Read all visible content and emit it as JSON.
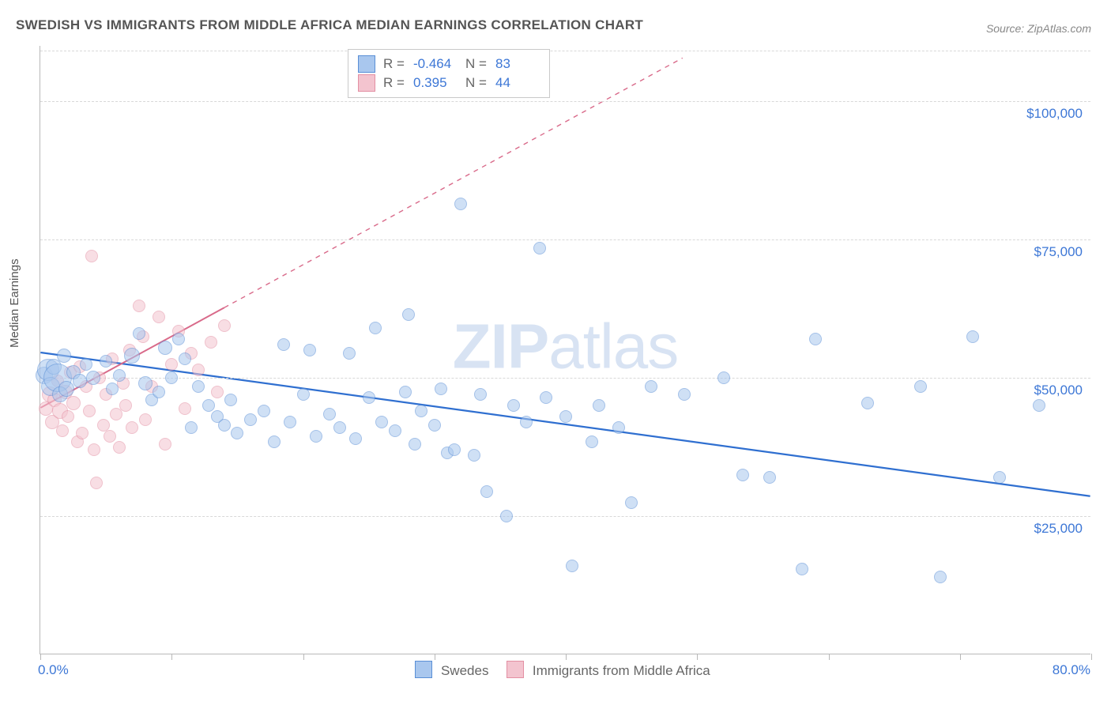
{
  "title": "SWEDISH VS IMMIGRANTS FROM MIDDLE AFRICA MEDIAN EARNINGS CORRELATION CHART",
  "source": "Source: ZipAtlas.com",
  "ylabel": "Median Earnings",
  "watermark_bold": "ZIP",
  "watermark_light": "atlas",
  "chart": {
    "type": "scatter",
    "xlim": [
      0,
      80
    ],
    "ylim": [
      0,
      110000
    ],
    "x_unit": "%",
    "y_unit": "$",
    "background_color": "#ffffff",
    "grid_color": "#d8d8d8",
    "axis_color": "#b9b9b9",
    "yticks": [
      {
        "v": 25000,
        "label": "$25,000"
      },
      {
        "v": 50000,
        "label": "$50,000"
      },
      {
        "v": 75000,
        "label": "$75,000"
      },
      {
        "v": 100000,
        "label": "$100,000"
      }
    ],
    "xticks_minor": [
      0,
      10,
      20,
      30,
      40,
      50,
      60,
      70,
      80
    ],
    "xlabel_min": "0.0%",
    "xlabel_max": "80.0%",
    "ytick_label_color": "#3d77d6",
    "xtick_label_color": "#3d77d6"
  },
  "series": {
    "blue": {
      "label": "Swedes",
      "fill": "#a9c7ee",
      "stroke": "#5a8fd6",
      "fill_opacity": 0.55,
      "R": "-0.464",
      "N": "83",
      "trend": {
        "x1": 0,
        "y1": 54500,
        "x2": 80,
        "y2": 28500,
        "solid_to_x": 80,
        "color": "#2f6fd0",
        "width": 2.2
      },
      "points": [
        {
          "x": 0.3,
          "y": 50500,
          "r": 11
        },
        {
          "x": 0.6,
          "y": 51500,
          "r": 14
        },
        {
          "x": 0.8,
          "y": 48500,
          "r": 12
        },
        {
          "x": 1.0,
          "y": 52000,
          "r": 10
        },
        {
          "x": 1.3,
          "y": 50000,
          "r": 18
        },
        {
          "x": 1.5,
          "y": 47000,
          "r": 10
        },
        {
          "x": 1.8,
          "y": 54000,
          "r": 9
        },
        {
          "x": 2.0,
          "y": 48000,
          "r": 10
        },
        {
          "x": 2.5,
          "y": 51000,
          "r": 9
        },
        {
          "x": 3.0,
          "y": 49500,
          "r": 9
        },
        {
          "x": 3.5,
          "y": 52500,
          "r": 8
        },
        {
          "x": 4.0,
          "y": 50000,
          "r": 9
        },
        {
          "x": 5.0,
          "y": 53000,
          "r": 8
        },
        {
          "x": 5.5,
          "y": 48000,
          "r": 8
        },
        {
          "x": 6.0,
          "y": 50500,
          "r": 8
        },
        {
          "x": 7.0,
          "y": 54000,
          "r": 10
        },
        {
          "x": 7.5,
          "y": 58000,
          "r": 8
        },
        {
          "x": 8.0,
          "y": 49000,
          "r": 9
        },
        {
          "x": 8.5,
          "y": 46000,
          "r": 8
        },
        {
          "x": 9.0,
          "y": 47500,
          "r": 8
        },
        {
          "x": 9.5,
          "y": 55500,
          "r": 9
        },
        {
          "x": 10.0,
          "y": 50000,
          "r": 8
        },
        {
          "x": 10.5,
          "y": 57000,
          "r": 8
        },
        {
          "x": 11.0,
          "y": 53500,
          "r": 8
        },
        {
          "x": 11.5,
          "y": 41000,
          "r": 8
        },
        {
          "x": 12.0,
          "y": 48500,
          "r": 8
        },
        {
          "x": 12.8,
          "y": 45000,
          "r": 8
        },
        {
          "x": 13.5,
          "y": 43000,
          "r": 8
        },
        {
          "x": 14.0,
          "y": 41500,
          "r": 8
        },
        {
          "x": 14.5,
          "y": 46000,
          "r": 8
        },
        {
          "x": 15.0,
          "y": 40000,
          "r": 8
        },
        {
          "x": 16.0,
          "y": 42500,
          "r": 8
        },
        {
          "x": 17.0,
          "y": 44000,
          "r": 8
        },
        {
          "x": 17.8,
          "y": 38500,
          "r": 8
        },
        {
          "x": 18.5,
          "y": 56000,
          "r": 8
        },
        {
          "x": 19.0,
          "y": 42000,
          "r": 8
        },
        {
          "x": 20.0,
          "y": 47000,
          "r": 8
        },
        {
          "x": 20.5,
          "y": 55000,
          "r": 8
        },
        {
          "x": 21.0,
          "y": 39500,
          "r": 8
        },
        {
          "x": 22.0,
          "y": 43500,
          "r": 8
        },
        {
          "x": 22.8,
          "y": 41000,
          "r": 8
        },
        {
          "x": 23.5,
          "y": 54500,
          "r": 8
        },
        {
          "x": 24.0,
          "y": 39000,
          "r": 8
        },
        {
          "x": 25.0,
          "y": 46500,
          "r": 8
        },
        {
          "x": 25.5,
          "y": 59000,
          "r": 8
        },
        {
          "x": 26.0,
          "y": 42000,
          "r": 8
        },
        {
          "x": 27.0,
          "y": 40500,
          "r": 8
        },
        {
          "x": 27.8,
          "y": 47500,
          "r": 8
        },
        {
          "x": 28.0,
          "y": 61500,
          "r": 8
        },
        {
          "x": 28.5,
          "y": 38000,
          "r": 8
        },
        {
          "x": 29.0,
          "y": 44000,
          "r": 8
        },
        {
          "x": 30.0,
          "y": 41500,
          "r": 8
        },
        {
          "x": 30.5,
          "y": 48000,
          "r": 8
        },
        {
          "x": 31.0,
          "y": 36500,
          "r": 8
        },
        {
          "x": 31.5,
          "y": 37000,
          "r": 8
        },
        {
          "x": 32.0,
          "y": 81500,
          "r": 8
        },
        {
          "x": 33.0,
          "y": 36000,
          "r": 8
        },
        {
          "x": 33.5,
          "y": 47000,
          "r": 8
        },
        {
          "x": 34.0,
          "y": 29500,
          "r": 8
        },
        {
          "x": 35.5,
          "y": 25000,
          "r": 8
        },
        {
          "x": 36.0,
          "y": 45000,
          "r": 8
        },
        {
          "x": 37.0,
          "y": 42000,
          "r": 8
        },
        {
          "x": 38.0,
          "y": 73500,
          "r": 8
        },
        {
          "x": 38.5,
          "y": 46500,
          "r": 8
        },
        {
          "x": 40.0,
          "y": 43000,
          "r": 8
        },
        {
          "x": 40.5,
          "y": 16000,
          "r": 8
        },
        {
          "x": 42.0,
          "y": 38500,
          "r": 8
        },
        {
          "x": 42.5,
          "y": 45000,
          "r": 8
        },
        {
          "x": 44.0,
          "y": 41000,
          "r": 8
        },
        {
          "x": 45.0,
          "y": 27500,
          "r": 8
        },
        {
          "x": 46.5,
          "y": 48500,
          "r": 8
        },
        {
          "x": 49.0,
          "y": 47000,
          "r": 8
        },
        {
          "x": 52.0,
          "y": 50000,
          "r": 8
        },
        {
          "x": 53.5,
          "y": 32500,
          "r": 8
        },
        {
          "x": 55.5,
          "y": 32000,
          "r": 8
        },
        {
          "x": 58.0,
          "y": 15500,
          "r": 8
        },
        {
          "x": 59.0,
          "y": 57000,
          "r": 8
        },
        {
          "x": 63.0,
          "y": 45500,
          "r": 8
        },
        {
          "x": 67.0,
          "y": 48500,
          "r": 8
        },
        {
          "x": 68.5,
          "y": 14000,
          "r": 8
        },
        {
          "x": 71.0,
          "y": 57500,
          "r": 8
        },
        {
          "x": 73.0,
          "y": 32000,
          "r": 8
        },
        {
          "x": 76.0,
          "y": 45000,
          "r": 8
        }
      ]
    },
    "pink": {
      "label": "Immigrants from Middle Africa",
      "fill": "#f3c4cf",
      "stroke": "#e38fa3",
      "fill_opacity": 0.55,
      "R": "0.395",
      "N": "44",
      "trend": {
        "x1": 0,
        "y1": 44500,
        "x2": 80,
        "y2": 148000,
        "solid_to_x": 14,
        "color": "#d96a8a",
        "width": 2
      },
      "points": [
        {
          "x": 0.4,
          "y": 44500,
          "r": 9
        },
        {
          "x": 0.7,
          "y": 47000,
          "r": 10
        },
        {
          "x": 0.9,
          "y": 42000,
          "r": 9
        },
        {
          "x": 1.1,
          "y": 46000,
          "r": 9
        },
        {
          "x": 1.3,
          "y": 49500,
          "r": 8
        },
        {
          "x": 1.5,
          "y": 44000,
          "r": 10
        },
        {
          "x": 1.7,
          "y": 40500,
          "r": 8
        },
        {
          "x": 1.9,
          "y": 47500,
          "r": 9
        },
        {
          "x": 2.1,
          "y": 43000,
          "r": 8
        },
        {
          "x": 2.3,
          "y": 51000,
          "r": 8
        },
        {
          "x": 2.5,
          "y": 45500,
          "r": 9
        },
        {
          "x": 2.8,
          "y": 38500,
          "r": 8
        },
        {
          "x": 3.0,
          "y": 52000,
          "r": 8
        },
        {
          "x": 3.2,
          "y": 40000,
          "r": 8
        },
        {
          "x": 3.5,
          "y": 48500,
          "r": 8
        },
        {
          "x": 3.7,
          "y": 44000,
          "r": 8
        },
        {
          "x": 3.9,
          "y": 72000,
          "r": 8
        },
        {
          "x": 4.1,
          "y": 37000,
          "r": 8
        },
        {
          "x": 4.3,
          "y": 31000,
          "r": 8
        },
        {
          "x": 4.5,
          "y": 50000,
          "r": 8
        },
        {
          "x": 4.8,
          "y": 41500,
          "r": 8
        },
        {
          "x": 5.0,
          "y": 47000,
          "r": 8
        },
        {
          "x": 5.3,
          "y": 39500,
          "r": 8
        },
        {
          "x": 5.5,
          "y": 53500,
          "r": 8
        },
        {
          "x": 5.8,
          "y": 43500,
          "r": 8
        },
        {
          "x": 6.0,
          "y": 37500,
          "r": 8
        },
        {
          "x": 6.3,
          "y": 49000,
          "r": 8
        },
        {
          "x": 6.5,
          "y": 45000,
          "r": 8
        },
        {
          "x": 6.8,
          "y": 55000,
          "r": 8
        },
        {
          "x": 7.0,
          "y": 41000,
          "r": 8
        },
        {
          "x": 7.5,
          "y": 63000,
          "r": 8
        },
        {
          "x": 7.8,
          "y": 57500,
          "r": 8
        },
        {
          "x": 8.0,
          "y": 42500,
          "r": 8
        },
        {
          "x": 8.5,
          "y": 48500,
          "r": 8
        },
        {
          "x": 9.0,
          "y": 61000,
          "r": 8
        },
        {
          "x": 9.5,
          "y": 38000,
          "r": 8
        },
        {
          "x": 10.0,
          "y": 52500,
          "r": 8
        },
        {
          "x": 10.5,
          "y": 58500,
          "r": 8
        },
        {
          "x": 11.0,
          "y": 44500,
          "r": 8
        },
        {
          "x": 11.5,
          "y": 54500,
          "r": 8
        },
        {
          "x": 12.0,
          "y": 51500,
          "r": 8
        },
        {
          "x": 13.0,
          "y": 56500,
          "r": 8
        },
        {
          "x": 13.5,
          "y": 47500,
          "r": 8
        },
        {
          "x": 14.0,
          "y": 59500,
          "r": 8
        }
      ]
    }
  },
  "legend_top_labels": {
    "R": "R =",
    "N": "N ="
  },
  "legend_bottom": {
    "swatch_border_blue": "#5a8fd6",
    "swatch_fill_blue": "#a9c7ee",
    "swatch_border_pink": "#e38fa3",
    "swatch_fill_pink": "#f3c4cf"
  }
}
